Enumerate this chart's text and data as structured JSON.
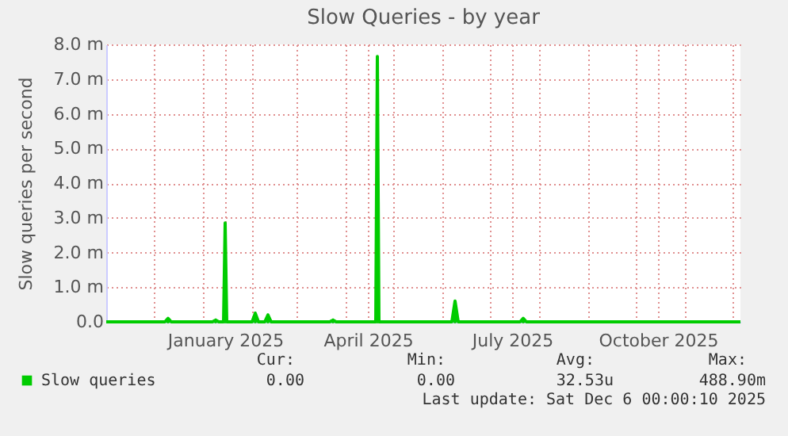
{
  "chart_data": {
    "type": "area",
    "title": "Slow Queries - by year",
    "ylabel": "Slow queries per second",
    "x": [
      "2024-11-01",
      "2024-12-08",
      "2024-12-10",
      "2024-12-12",
      "2025-01-07",
      "2025-01-09",
      "2025-01-11",
      "2025-01-14",
      "2025-01-15",
      "2025-01-16",
      "2025-02-01",
      "2025-02-03",
      "2025-02-05",
      "2025-02-09",
      "2025-02-11",
      "2025-02-13",
      "2025-03-22",
      "2025-03-24",
      "2025-03-26",
      "2025-04-20",
      "2025-04-21",
      "2025-04-22",
      "2025-06-07",
      "2025-06-09",
      "2025-06-11",
      "2025-07-20",
      "2025-07-22",
      "2025-07-24",
      "2025-12-06"
    ],
    "series": [
      {
        "name": "Slow queries",
        "color": "#00cc00",
        "values": [
          0,
          0,
          0.1,
          0,
          0,
          0.05,
          0,
          0,
          2.85,
          0,
          0,
          0.25,
          0,
          0,
          0.2,
          0,
          0,
          0.05,
          0,
          0,
          7.65,
          0,
          0,
          0.6,
          0,
          0,
          0.1,
          0,
          0
        ]
      }
    ],
    "xlim": [
      "2024-11-01",
      "2025-12-06"
    ],
    "xticks": [
      {
        "value": "2024-12-01",
        "label": null
      },
      {
        "value": "2025-01-01",
        "label": null
      },
      {
        "value": "2025-01-15",
        "label": "January 2025"
      },
      {
        "value": "2025-02-01",
        "label": null
      },
      {
        "value": "2025-03-01",
        "label": null
      },
      {
        "value": "2025-04-01",
        "label": null
      },
      {
        "value": "2025-04-15",
        "label": "April 2025"
      },
      {
        "value": "2025-05-01",
        "label": null
      },
      {
        "value": "2025-06-01",
        "label": null
      },
      {
        "value": "2025-07-01",
        "label": null
      },
      {
        "value": "2025-07-15",
        "label": "July 2025"
      },
      {
        "value": "2025-08-01",
        "label": null
      },
      {
        "value": "2025-09-01",
        "label": null
      },
      {
        "value": "2025-10-01",
        "label": null
      },
      {
        "value": "2025-10-15",
        "label": "October 2025"
      },
      {
        "value": "2025-11-01",
        "label": null
      },
      {
        "value": "2025-12-01",
        "label": null
      }
    ],
    "ylim": [
      0,
      8
    ],
    "yticks": [
      {
        "value": 0,
        "label": "0.0"
      },
      {
        "value": 1,
        "label": "1.0 m"
      },
      {
        "value": 2,
        "label": "2.0 m"
      },
      {
        "value": 3,
        "label": "3.0 m"
      },
      {
        "value": 4,
        "label": "4.0 m"
      },
      {
        "value": 5,
        "label": "5.0 m"
      },
      {
        "value": 6,
        "label": "6.0 m"
      },
      {
        "value": 7,
        "label": "7.0 m"
      },
      {
        "value": 8,
        "label": "8.0 m"
      }
    ],
    "grid": true,
    "legend": "bottom",
    "annotations": [
      "Cur:",
      "Min:",
      "Avg:",
      "Max:",
      "0.00",
      "0.00",
      "32.53u",
      "488.90m",
      "Last update: Sat Dec  6 00:00:10 2025"
    ]
  }
}
